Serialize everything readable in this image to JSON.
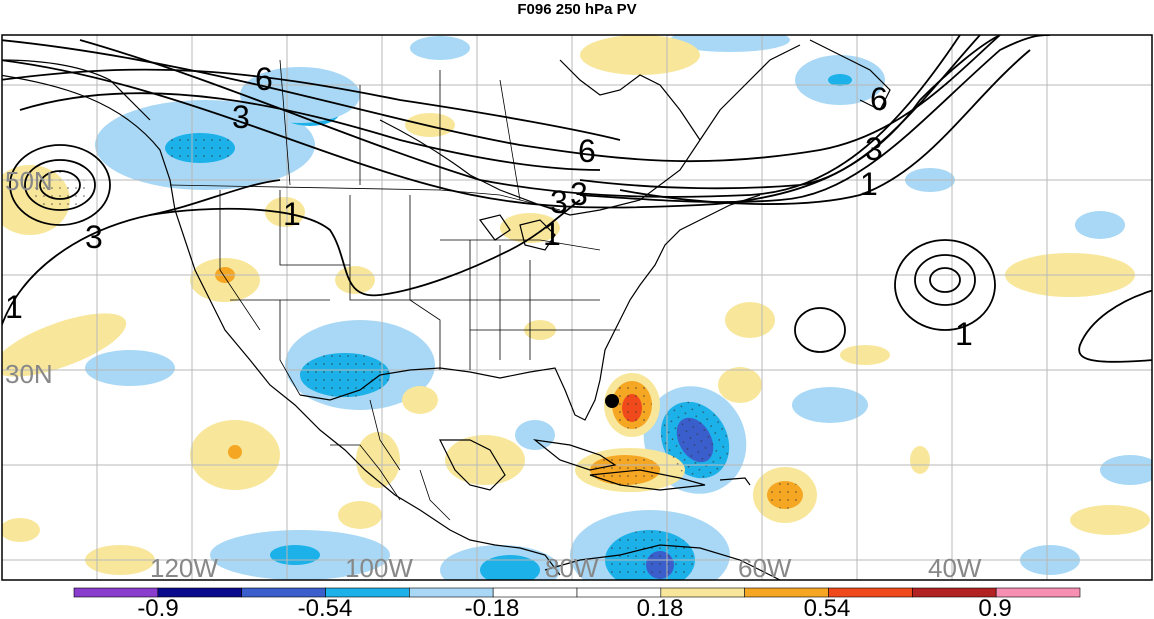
{
  "title": "F096 250 hPa PV",
  "latitude_labels": [
    "50N",
    "30N"
  ],
  "longitude_labels": [
    "120W",
    "100W",
    "80W",
    "60W",
    "40W"
  ],
  "contour_labels": [
    "6",
    "3",
    "6",
    "3",
    "6",
    "3",
    "1",
    "3",
    "1",
    "1",
    "1",
    "3",
    "1"
  ],
  "colorbar": {
    "tick_labels": [
      "-0.9",
      "-0.54",
      "-0.18",
      "0.18",
      "0.54",
      "0.9"
    ],
    "colors": [
      "#8a3ccf",
      "#0a0a8c",
      "#3a5fcd",
      "#1cb1e8",
      "#a8d8f5",
      "#ffffff",
      "#ffffff",
      "#f8e79b",
      "#f5a623",
      "#f04a1c",
      "#b22222",
      "#f78fb3"
    ]
  },
  "colors": {
    "pos_weak": "#f8e79b",
    "pos_mid": "#f5a623",
    "pos_strong": "#f04a1c",
    "neg_weak": "#a8d8f5",
    "neg_mid": "#1cb1e8",
    "neg_strong": "#3a5fcd",
    "grid": "#b8b8b8",
    "coast": "#000000",
    "contour": "#000000"
  },
  "markers": [
    {
      "name": "storm-center",
      "symbol": "filled-circle"
    }
  ]
}
